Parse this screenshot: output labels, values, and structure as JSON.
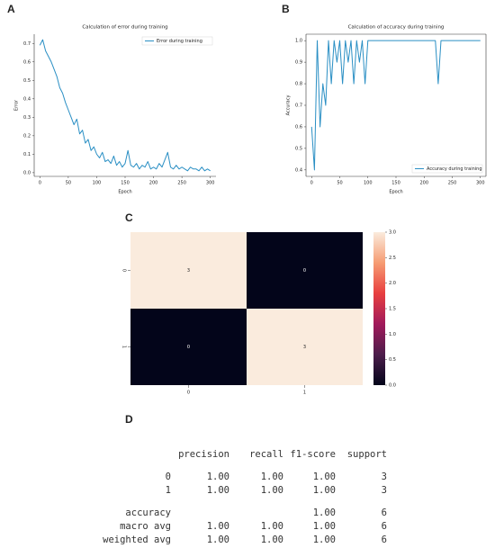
{
  "panel_labels": [
    "A",
    "B",
    "C",
    "D"
  ],
  "chart_data": [
    {
      "type": "line",
      "title": "Calculation of error during training",
      "x_label": "Epoch",
      "y_label": "Error",
      "legend": "upper right",
      "x": [
        0,
        5,
        10,
        15,
        20,
        25,
        30,
        35,
        40,
        45,
        50,
        55,
        60,
        65,
        70,
        75,
        80,
        85,
        90,
        95,
        100,
        105,
        110,
        115,
        120,
        125,
        130,
        135,
        140,
        145,
        150,
        155,
        160,
        165,
        170,
        175,
        180,
        185,
        190,
        195,
        200,
        205,
        210,
        215,
        220,
        225,
        230,
        235,
        240,
        245,
        250,
        255,
        260,
        265,
        270,
        275,
        280,
        285,
        290,
        295,
        300
      ],
      "series": [
        {
          "name": "Error during training",
          "color": "#2a8fc4",
          "values": [
            0.69,
            0.72,
            0.66,
            0.63,
            0.6,
            0.56,
            0.52,
            0.46,
            0.43,
            0.38,
            0.34,
            0.3,
            0.26,
            0.29,
            0.21,
            0.23,
            0.16,
            0.18,
            0.12,
            0.14,
            0.1,
            0.08,
            0.11,
            0.06,
            0.07,
            0.05,
            0.09,
            0.04,
            0.06,
            0.03,
            0.05,
            0.12,
            0.04,
            0.03,
            0.05,
            0.02,
            0.04,
            0.03,
            0.06,
            0.02,
            0.03,
            0.02,
            0.05,
            0.03,
            0.07,
            0.11,
            0.03,
            0.02,
            0.04,
            0.02,
            0.03,
            0.02,
            0.01,
            0.03,
            0.02,
            0.02,
            0.01,
            0.03,
            0.01,
            0.02,
            0.01
          ]
        }
      ],
      "xlim": [
        -10,
        310
      ],
      "ylim": [
        -0.02,
        0.75
      ],
      "xticks": [
        0,
        50,
        100,
        150,
        200,
        250,
        300
      ],
      "yticks": [
        {
          "value": 0,
          "label": "0.0"
        },
        0.1,
        0.2,
        0.3,
        0.4,
        0.5,
        0.6,
        0.7
      ]
    },
    {
      "type": "line",
      "title": "Calculation of accuracy during training",
      "x_label": "Epoch",
      "y_label": "Accuracy",
      "legend": "lower right",
      "x": [
        0,
        5,
        10,
        15,
        20,
        25,
        30,
        35,
        40,
        45,
        50,
        55,
        60,
        65,
        70,
        75,
        80,
        85,
        90,
        95,
        100,
        105,
        110,
        115,
        120,
        125,
        130,
        135,
        140,
        145,
        150,
        155,
        160,
        165,
        170,
        175,
        180,
        185,
        190,
        195,
        200,
        205,
        210,
        215,
        220,
        225,
        230,
        235,
        240,
        245,
        250,
        255,
        260,
        265,
        270,
        275,
        280,
        285,
        290,
        295,
        300
      ],
      "series": [
        {
          "name": "Accuracy during training",
          "color": "#2a8fc4",
          "values": [
            0.6,
            0.4,
            1,
            0.6,
            0.8,
            0.7,
            1,
            0.8,
            1,
            0.9,
            1,
            0.8,
            1,
            0.9,
            1,
            0.8,
            1,
            0.9,
            1,
            0.8,
            1,
            1,
            1,
            1,
            1,
            1,
            1,
            1,
            1,
            1,
            1,
            1,
            1,
            1,
            1,
            1,
            1,
            1,
            1,
            1,
            1,
            1,
            1,
            1,
            1,
            0.8,
            1,
            1,
            1,
            1,
            1,
            1,
            1,
            1,
            1,
            1,
            1,
            1,
            1,
            1,
            1
          ]
        }
      ],
      "xlim": [
        -10,
        310
      ],
      "ylim": [
        0.37,
        1.03
      ],
      "xticks": [
        0,
        50,
        100,
        150,
        200,
        250,
        300
      ],
      "yticks": [
        0.4,
        0.5,
        0.6,
        0.7,
        0.8,
        0.9,
        {
          "value": 1,
          "label": "1.0"
        }
      ]
    },
    {
      "type": "heatmap",
      "rows": [
        "0",
        "1"
      ],
      "columns": [
        "0",
        "1"
      ],
      "values": [
        [
          3,
          0
        ],
        [
          0,
          3
        ]
      ],
      "clim": [
        0,
        3
      ],
      "colormap": [
        "#03051a",
        "#4c1d4b",
        "#a11a5b",
        "#e83f3f",
        "#f69c73",
        "#faebdd"
      ],
      "cticks": [
        {
          "value": 0,
          "label": "0.0"
        },
        0.5,
        {
          "value": 1,
          "label": "1.0"
        },
        1.5,
        {
          "value": 2,
          "label": "2.0"
        },
        2.5,
        {
          "value": 3,
          "label": "3.0"
        }
      ]
    }
  ],
  "report": {
    "header": [
      "precision",
      "recall",
      "f1-score",
      "support"
    ],
    "rows": [
      [
        "0",
        "1.00",
        "1.00",
        "1.00",
        "3"
      ],
      [
        "1",
        "1.00",
        "1.00",
        "1.00",
        "3"
      ],
      [
        "accuracy",
        null,
        null,
        "1.00",
        "6"
      ],
      [
        "macro avg",
        "1.00",
        "1.00",
        "1.00",
        "6"
      ],
      [
        "weighted avg",
        "1.00",
        "1.00",
        "1.00",
        "6"
      ]
    ]
  }
}
